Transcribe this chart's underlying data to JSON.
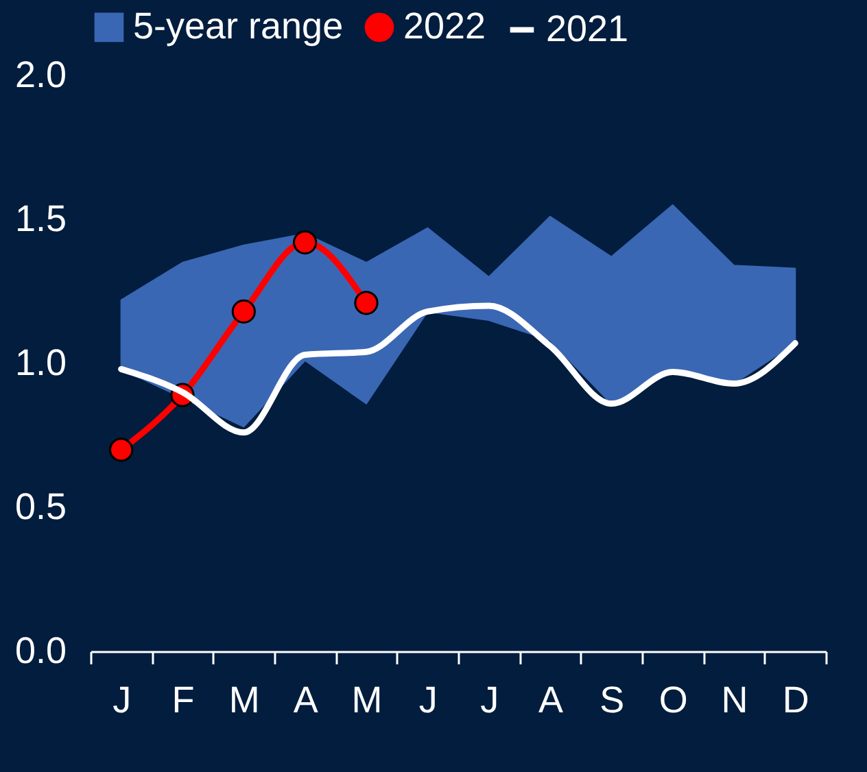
{
  "chart_data": {
    "type": "line",
    "categories": [
      "J",
      "F",
      "M",
      "A",
      "M",
      "J",
      "J",
      "A",
      "S",
      "O",
      "N",
      "D"
    ],
    "ylim": [
      0,
      2
    ],
    "yticks": [
      {
        "value": 0,
        "label": "0.0"
      },
      {
        "value": 0.5,
        "label": "0.5"
      },
      {
        "value": 1,
        "label": "1.0"
      },
      {
        "value": 1.5,
        "label": "1.5"
      },
      {
        "value": 2,
        "label": "2.0"
      }
    ],
    "grid": false,
    "legend": "top",
    "series": [
      {
        "name": "5-year range",
        "type": "area",
        "color": "#3a67b4",
        "values": [
          null,
          null,
          null,
          null,
          null,
          null,
          null,
          null,
          null,
          null,
          null,
          null
        ],
        "lower": [
          0.98,
          0.88,
          0.78,
          1.01,
          0.86,
          1.18,
          1.15,
          1.08,
          0.86,
          0.97,
          0.93,
          1.07
        ],
        "upper": [
          1.22,
          1.35,
          1.41,
          1.45,
          1.35,
          1.47,
          1.3,
          1.51,
          1.37,
          1.55,
          1.34,
          1.33
        ]
      },
      {
        "name": "2022",
        "color": "#ff0000",
        "marker": "circle",
        "values": [
          0.7,
          0.89,
          1.18,
          1.42,
          1.21,
          null,
          null,
          null,
          null,
          null,
          null,
          null
        ]
      },
      {
        "name": "2021",
        "color": "#ffffff",
        "marker": "none",
        "values": [
          0.98,
          0.9,
          0.76,
          1.03,
          1.04,
          1.18,
          1.2,
          1.06,
          0.86,
          0.97,
          0.93,
          1.07
        ]
      }
    ]
  }
}
